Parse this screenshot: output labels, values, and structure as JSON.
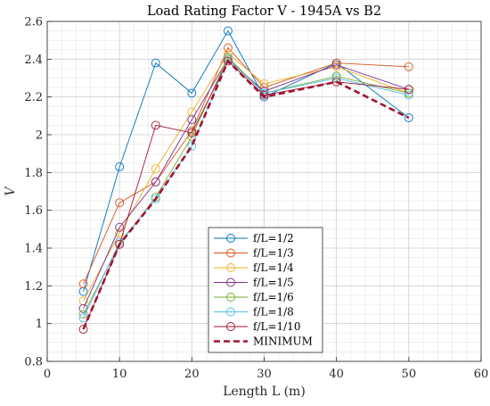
{
  "chart_data": {
    "type": "line",
    "title": "Load Rating Factor V - 1945A vs B2",
    "xlabel": "Length L (m)",
    "ylabel": "V",
    "xlim": [
      0,
      60
    ],
    "ylim": [
      0.8,
      2.6
    ],
    "x_ticks": [
      "0",
      "10",
      "20",
      "30",
      "40",
      "50",
      "60"
    ],
    "y_ticks": [
      "0.8",
      "1",
      "1.2",
      "1.4",
      "1.6",
      "1.8",
      "2",
      "2.2",
      "2.4",
      "2.6"
    ],
    "grid": true,
    "minor_grid": true,
    "legend_position": "lower-center",
    "x": [
      5,
      10,
      15,
      20,
      25,
      30,
      40,
      50
    ],
    "series": [
      {
        "name": "f/L=1/2",
        "color": "#0072BD",
        "marker": "circle",
        "style": "solid",
        "values": [
          1.17,
          1.83,
          2.38,
          2.22,
          2.55,
          2.2,
          2.38,
          2.09
        ]
      },
      {
        "name": "f/L=1/3",
        "color": "#D95319",
        "marker": "circle",
        "style": "solid",
        "values": [
          1.21,
          1.64,
          1.75,
          2.02,
          2.46,
          2.25,
          2.38,
          2.36
        ]
      },
      {
        "name": "f/L=1/4",
        "color": "#EDB120",
        "marker": "circle",
        "style": "solid",
        "values": [
          1.12,
          1.48,
          1.82,
          2.12,
          2.43,
          2.27,
          2.36,
          2.22
        ]
      },
      {
        "name": "f/L=1/5",
        "color": "#7E2F8E",
        "marker": "circle",
        "style": "solid",
        "values": [
          1.08,
          1.51,
          1.75,
          2.08,
          2.4,
          2.23,
          2.37,
          2.24
        ]
      },
      {
        "name": "f/L=1/6",
        "color": "#77AC30",
        "marker": "circle",
        "style": "solid",
        "values": [
          1.05,
          1.42,
          1.67,
          1.99,
          2.41,
          2.22,
          2.31,
          2.22
        ]
      },
      {
        "name": "f/L=1/8",
        "color": "#4DBEEE",
        "marker": "circle",
        "style": "solid",
        "values": [
          1.03,
          1.43,
          1.66,
          1.94,
          2.4,
          2.22,
          2.3,
          2.21
        ]
      },
      {
        "name": "f/L=1/10",
        "color": "#A2142F",
        "marker": "circle",
        "style": "solid",
        "values": [
          0.97,
          1.42,
          2.05,
          2.01,
          2.39,
          2.21,
          2.28,
          2.24
        ]
      },
      {
        "name": "MINIMUM",
        "color": "#A2142F",
        "marker": "none",
        "style": "dashed",
        "values": [
          0.97,
          1.42,
          1.66,
          1.94,
          2.39,
          2.2,
          2.28,
          2.09
        ]
      }
    ]
  }
}
